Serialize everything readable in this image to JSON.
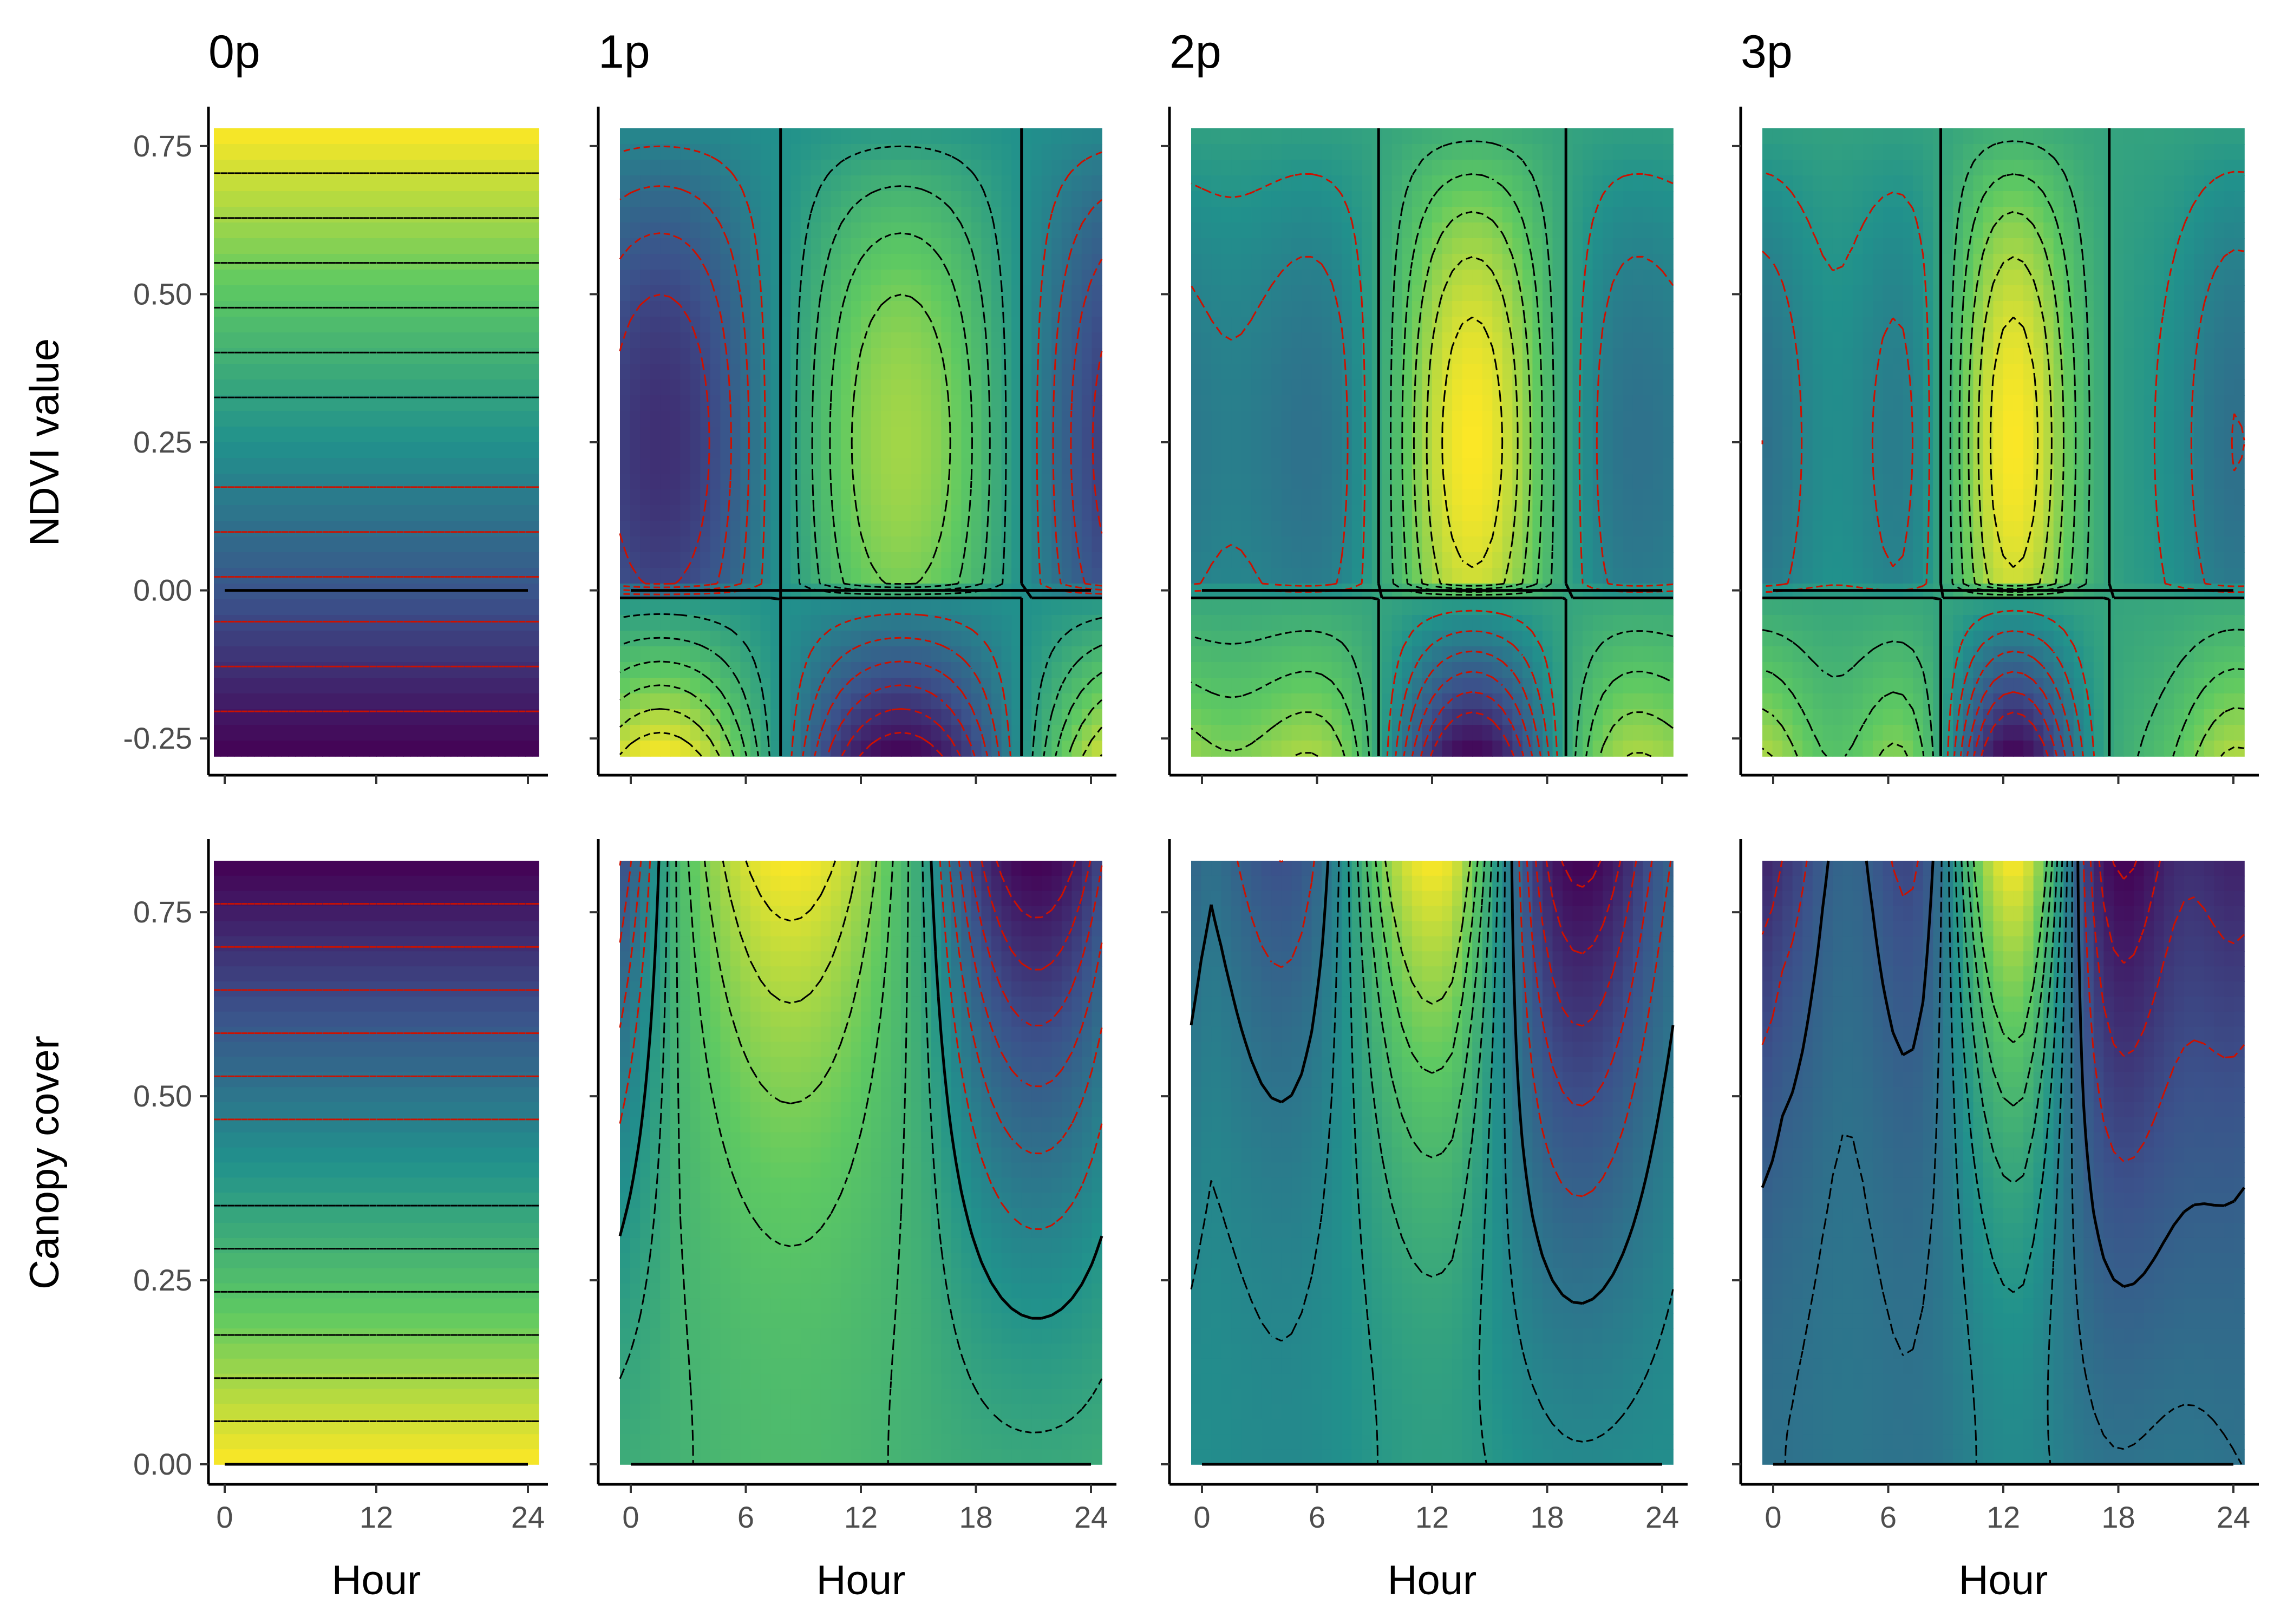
{
  "chart_data": {
    "type": "heatmap",
    "layout": {
      "rows": 2,
      "cols": 4
    },
    "colormap": "viridis",
    "colors": {
      "contour_zero": "#000000",
      "contour_positive": "#000000",
      "contour_negative": "#cc1100",
      "viridis": [
        "#440154",
        "#3b528b",
        "#21918c",
        "#5ec962",
        "#fde725"
      ]
    },
    "xlabel": "Hour",
    "x_range": [
      0,
      24
    ],
    "panel_titles": [
      "0p",
      "1p",
      "2p",
      "3p"
    ],
    "rows": [
      {
        "ylabel": "NDVI value",
        "y_range": [
          -0.28,
          0.78
        ],
        "y_ticks": [
          "-0.25",
          "0.00",
          "0.25",
          "0.50",
          "0.75"
        ],
        "y_tick_values": [
          -0.25,
          0,
          0.25,
          0.5,
          0.75
        ],
        "x_ticks_shown": false
      },
      {
        "ylabel": "Canopy cover",
        "y_range": [
          0,
          0.82
        ],
        "y_ticks": [
          "0.00",
          "0.25",
          "0.50",
          "0.75"
        ],
        "y_tick_values": [
          0,
          0.25,
          0.5,
          0.75
        ],
        "x_ticks_shown": true
      }
    ],
    "x_ticks": {
      "0p": [
        "0",
        "12",
        "24"
      ],
      "1p": [
        "0",
        "6",
        "12",
        "18",
        "24"
      ],
      "2p": [
        "0",
        "6",
        "12",
        "18",
        "24"
      ],
      "3p": [
        "0",
        "6",
        "12",
        "18",
        "24"
      ]
    },
    "x_tick_values": {
      "0p": [
        0,
        12,
        24
      ],
      "1p": [
        0,
        6,
        12,
        18,
        24
      ],
      "2p": [
        0,
        6,
        12,
        18,
        24
      ],
      "3p": [
        0,
        6,
        12,
        18,
        24
      ]
    },
    "panels": [
      {
        "id": "ndvi-0p",
        "row": 0,
        "col": 0,
        "surface": "linear_in_y",
        "note": "colour increases with NDVI; horizontal contours"
      },
      {
        "id": "ndvi-1p",
        "row": 0,
        "col": 1,
        "surface": "diel_harmonic_1",
        "peak_hour": 14,
        "trough_hour": 2
      },
      {
        "id": "ndvi-2p",
        "row": 0,
        "col": 2,
        "surface": "diel_harmonic_2",
        "peak_hour": 14,
        "trough_hour": 2
      },
      {
        "id": "ndvi-3p",
        "row": 0,
        "col": 3,
        "surface": "diel_harmonic_3",
        "peak_hour": 13,
        "trough_hour": 2
      },
      {
        "id": "canopy-0p",
        "row": 1,
        "col": 0,
        "surface": "linear_in_y_decreasing"
      },
      {
        "id": "canopy-1p",
        "row": 1,
        "col": 1,
        "surface": "diel_harmonic_1",
        "peak_hour": 8.5,
        "trough_hour": 21
      },
      {
        "id": "canopy-2p",
        "row": 1,
        "col": 2,
        "surface": "diel_harmonic_2",
        "peak_hour": 12,
        "trough_hour": 19
      },
      {
        "id": "canopy-3p",
        "row": 1,
        "col": 3,
        "surface": "diel_harmonic_3",
        "peak_hour": 12.5,
        "trough_hour": 19
      }
    ]
  }
}
